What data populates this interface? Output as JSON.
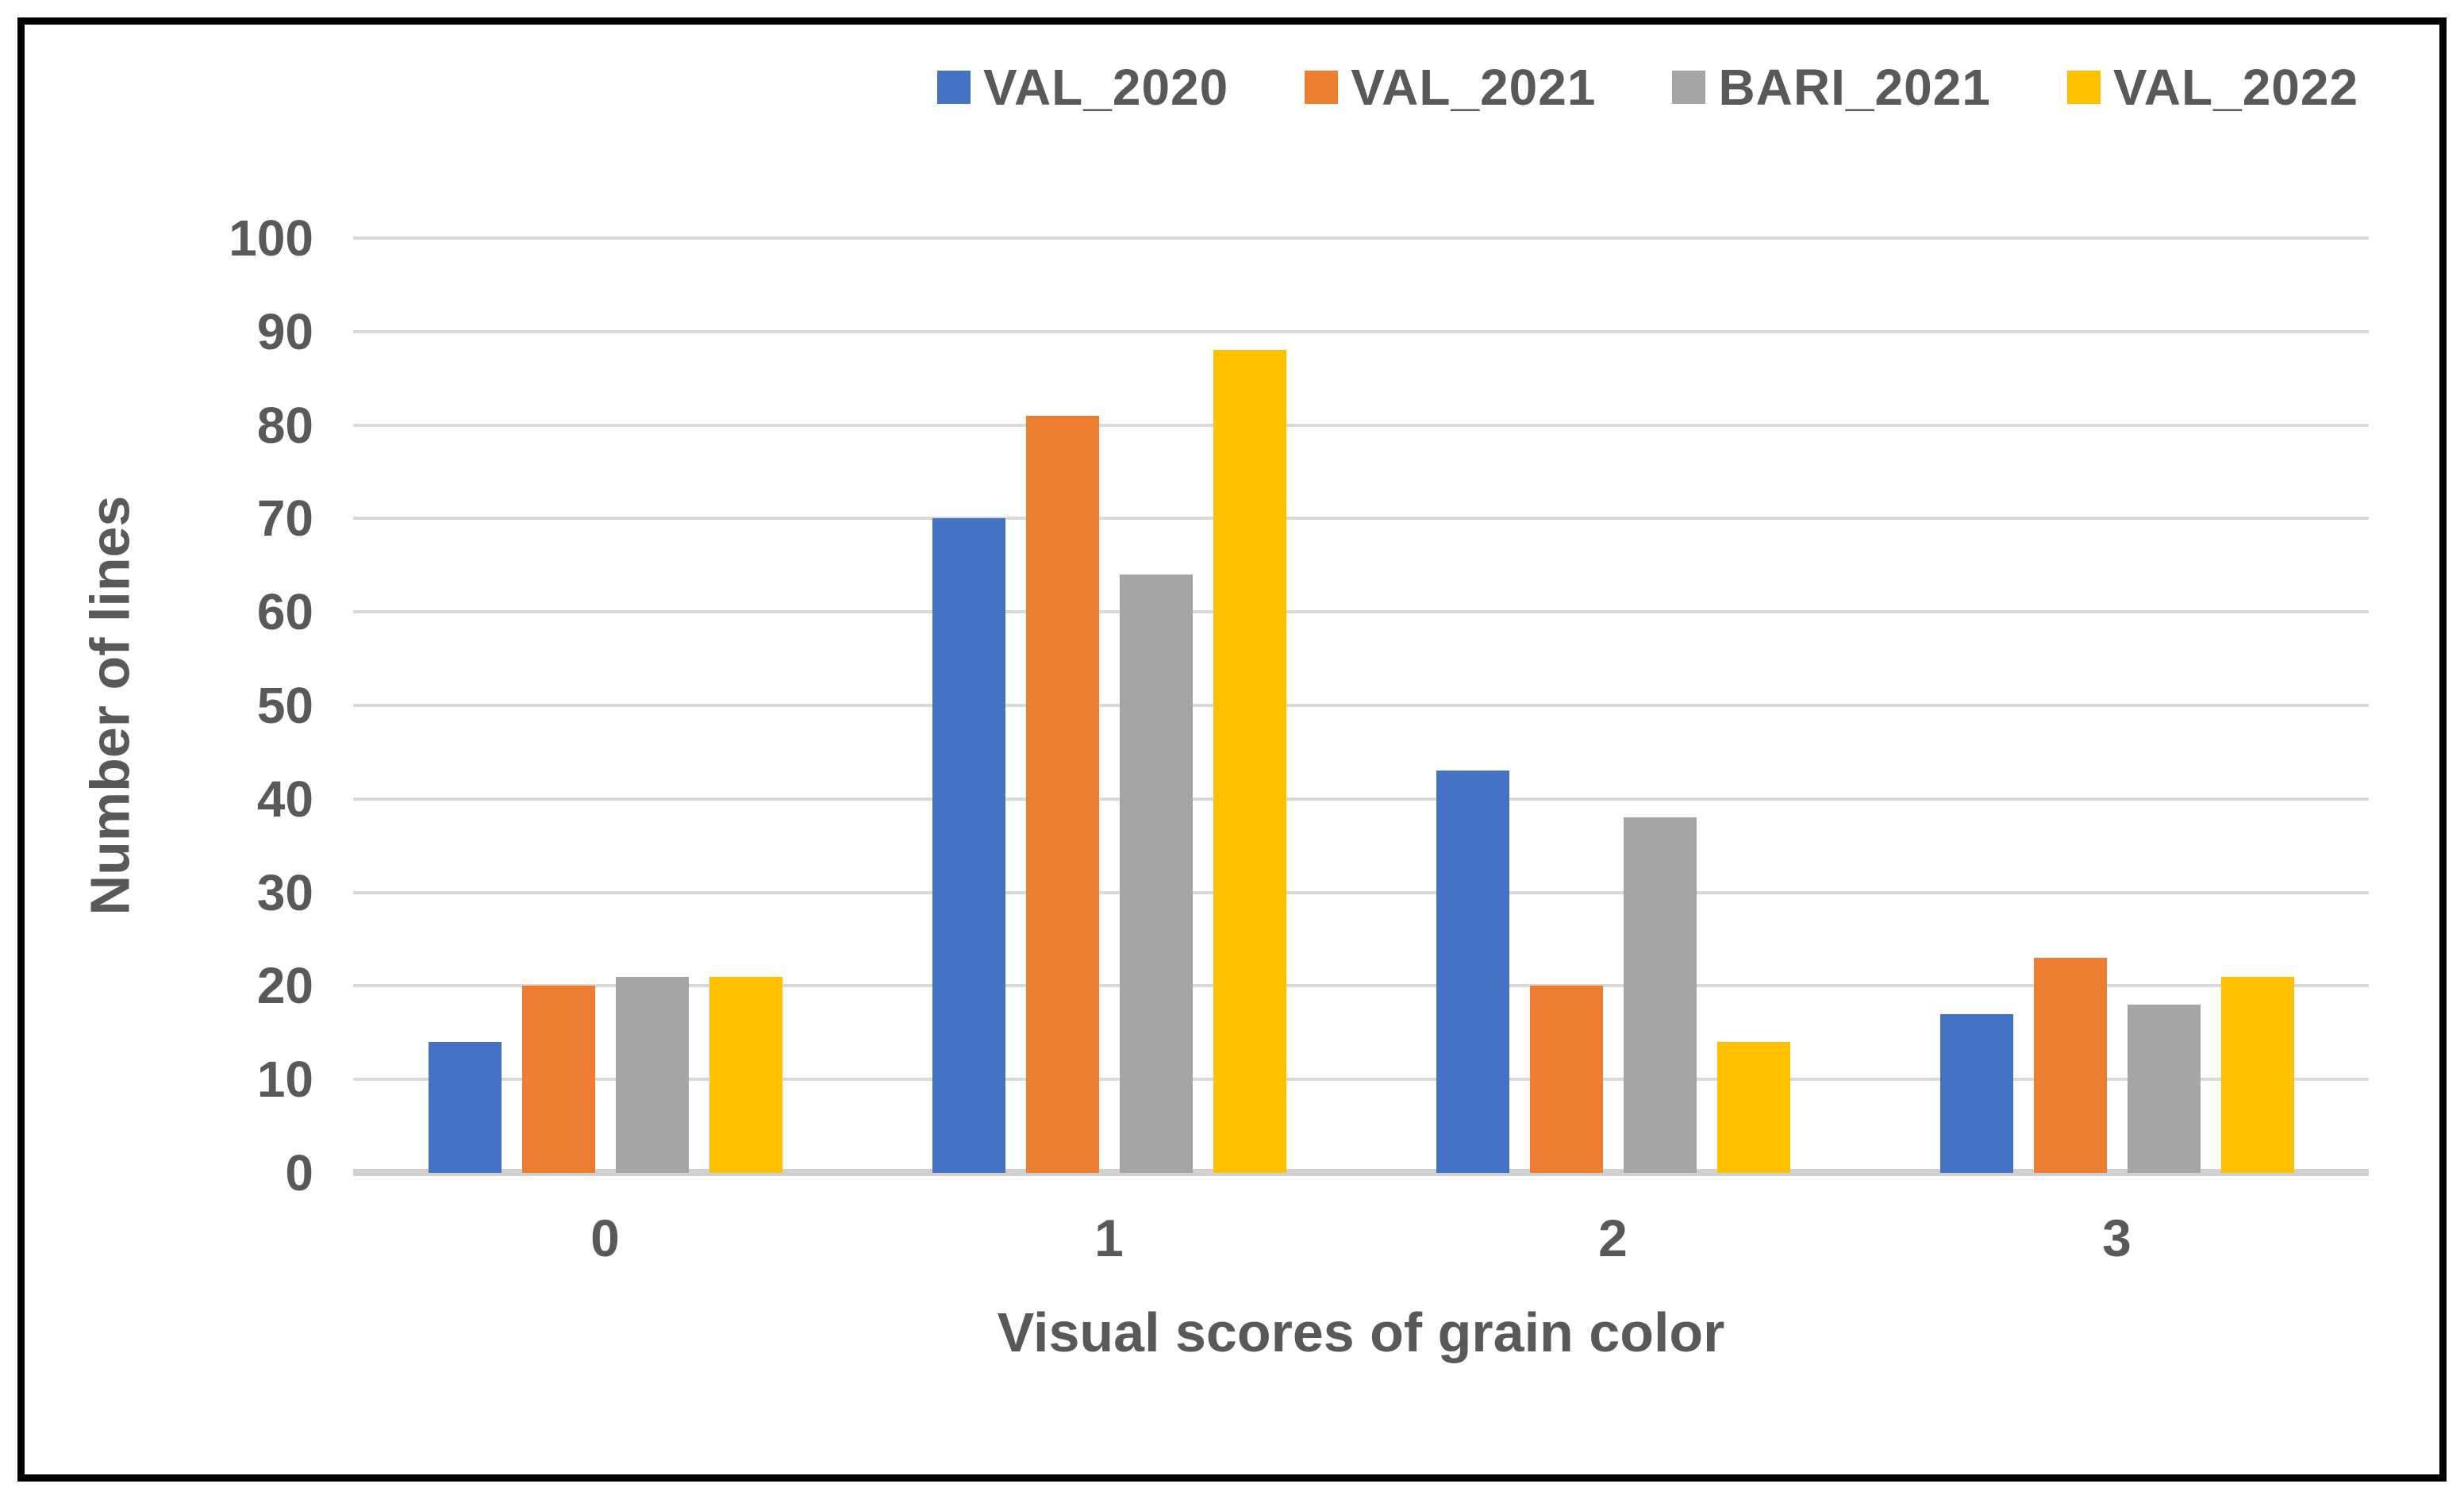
{
  "chart_data": {
    "type": "bar",
    "categories": [
      "0",
      "1",
      "2",
      "3"
    ],
    "series": [
      {
        "name": "VAL_2020",
        "color": "#4472C4",
        "values": [
          14,
          70,
          43,
          17
        ]
      },
      {
        "name": "VAL_2021",
        "color": "#ED7D31",
        "values": [
          20,
          81,
          20,
          23
        ]
      },
      {
        "name": "BARI_2021",
        "color": "#A5A5A5",
        "values": [
          21,
          64,
          38,
          18
        ]
      },
      {
        "name": "VAL_2022",
        "color": "#FFC000",
        "values": [
          21,
          88,
          14,
          21
        ]
      }
    ],
    "title": "",
    "xlabel": "Visual scores of grain color",
    "ylabel": "Number of lines",
    "ylim": [
      0,
      100
    ],
    "yticks": [
      0,
      10,
      20,
      30,
      40,
      50,
      60,
      70,
      80,
      90,
      100
    ],
    "grid": true,
    "legend_position": "top"
  },
  "colors": {
    "text": "#595959",
    "gridline": "#D9D9D9",
    "axis_line": "#D0D0D0",
    "frame_border": "#000000",
    "background": "#FFFFFF"
  }
}
